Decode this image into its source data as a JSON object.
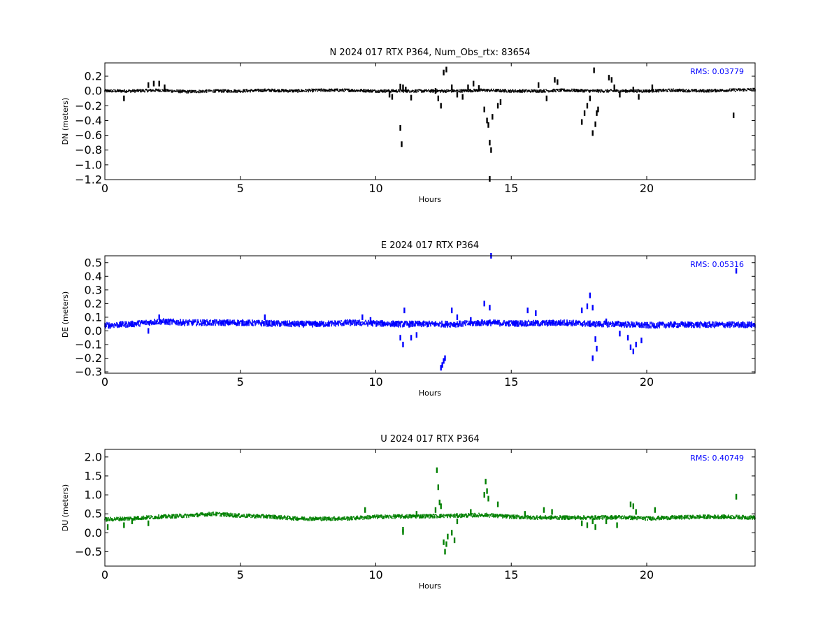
{
  "chart_data": [
    {
      "type": "scatter",
      "title": "N 2024 017 RTX  P364, Num_Obs_rtx: 83654",
      "xlabel": "Hours",
      "ylabel": "DN (meters)",
      "xlim": [
        0,
        24
      ],
      "ylim": [
        -1.2,
        0.38
      ],
      "xticks": [
        0,
        5,
        10,
        15,
        20
      ],
      "yticks": [
        0.2,
        0.0,
        -0.2,
        -0.4,
        -0.6,
        -0.8,
        -1.0,
        -1.2
      ],
      "ytick_labels": [
        "0.2",
        "0.0",
        "−0.2",
        "−0.4",
        "−0.6",
        "−0.8",
        "−1.0",
        "−1.2"
      ],
      "color": "#000000",
      "annotation": "RMS:  0.03779",
      "annotation_color": "#0000ff",
      "baseline": [
        [
          0,
          0.0
        ],
        [
          1,
          0.0
        ],
        [
          2,
          0.01
        ],
        [
          3,
          -0.01
        ],
        [
          4,
          0.0
        ],
        [
          5,
          0.0
        ],
        [
          6,
          0.01
        ],
        [
          7,
          0.0
        ],
        [
          8,
          0.01
        ],
        [
          9,
          0.01
        ],
        [
          10,
          0.0
        ],
        [
          11,
          0.0
        ],
        [
          12,
          0.0
        ],
        [
          13,
          0.0
        ],
        [
          14,
          0.01
        ],
        [
          15,
          0.0
        ],
        [
          16,
          0.0
        ],
        [
          17,
          0.01
        ],
        [
          18,
          0.0
        ],
        [
          19,
          0.0
        ],
        [
          20,
          0.0
        ],
        [
          21,
          0.01
        ],
        [
          22,
          0.0
        ],
        [
          23,
          0.01
        ],
        [
          24,
          0.02
        ]
      ],
      "band": 0.02,
      "outliers": [
        [
          1.6,
          0.08
        ],
        [
          1.8,
          0.1
        ],
        [
          2.0,
          0.1
        ],
        [
          2.2,
          0.05
        ],
        [
          0.7,
          -0.1
        ],
        [
          10.5,
          -0.05
        ],
        [
          10.6,
          -0.08
        ],
        [
          10.9,
          0.06
        ],
        [
          11.0,
          0.05
        ],
        [
          11.1,
          0.02
        ],
        [
          10.9,
          -0.5
        ],
        [
          10.95,
          -0.72
        ],
        [
          11.3,
          -0.09
        ],
        [
          12.2,
          0.0
        ],
        [
          12.3,
          -0.1
        ],
        [
          12.4,
          -0.2
        ],
        [
          12.5,
          0.25
        ],
        [
          12.6,
          0.29
        ],
        [
          12.8,
          0.05
        ],
        [
          13.0,
          -0.05
        ],
        [
          13.2,
          -0.08
        ],
        [
          13.4,
          0.05
        ],
        [
          13.6,
          0.1
        ],
        [
          13.8,
          0.04
        ],
        [
          14.0,
          -0.25
        ],
        [
          14.1,
          -0.4
        ],
        [
          14.15,
          -0.46
        ],
        [
          14.2,
          -0.7
        ],
        [
          14.25,
          -0.8
        ],
        [
          14.3,
          -0.35
        ],
        [
          14.5,
          -0.2
        ],
        [
          14.6,
          -0.15
        ],
        [
          14.2,
          -1.19
        ],
        [
          16.0,
          0.08
        ],
        [
          16.3,
          -0.1
        ],
        [
          16.6,
          0.15
        ],
        [
          16.7,
          0.12
        ],
        [
          17.6,
          -0.42
        ],
        [
          17.7,
          -0.3
        ],
        [
          17.8,
          -0.2
        ],
        [
          17.9,
          -0.1
        ],
        [
          18.0,
          -0.57
        ],
        [
          18.1,
          -0.45
        ],
        [
          18.15,
          -0.3
        ],
        [
          18.2,
          -0.25
        ],
        [
          18.05,
          0.28
        ],
        [
          18.6,
          0.18
        ],
        [
          18.7,
          0.15
        ],
        [
          18.8,
          0.05
        ],
        [
          19.0,
          -0.05
        ],
        [
          19.5,
          0.02
        ],
        [
          19.7,
          -0.08
        ],
        [
          20.2,
          0.05
        ],
        [
          23.2,
          -0.33
        ]
      ]
    },
    {
      "type": "scatter",
      "title": "E 2024 017 RTX  P364",
      "xlabel": "Hours",
      "ylabel": "DE (meters)",
      "xlim": [
        0,
        24
      ],
      "ylim": [
        -0.31,
        0.55
      ],
      "xticks": [
        0,
        5,
        10,
        15,
        20
      ],
      "yticks": [
        0.5,
        0.4,
        0.3,
        0.2,
        0.1,
        0.0,
        -0.1,
        -0.2,
        -0.3
      ],
      "ytick_labels": [
        "0.5",
        "0.4",
        "0.3",
        "0.2",
        "0.1",
        "0.0",
        "−0.1",
        "−0.2",
        "−0.3"
      ],
      "color": "#0000ff",
      "annotation": "RMS:  0.05316",
      "annotation_color": "#0000ff",
      "baseline": [
        [
          0,
          0.04
        ],
        [
          1,
          0.05
        ],
        [
          2,
          0.07
        ],
        [
          3,
          0.06
        ],
        [
          4,
          0.06
        ],
        [
          5,
          0.06
        ],
        [
          6,
          0.055
        ],
        [
          7,
          0.05
        ],
        [
          8,
          0.05
        ],
        [
          9,
          0.06
        ],
        [
          10,
          0.055
        ],
        [
          11,
          0.05
        ],
        [
          12,
          0.05
        ],
        [
          13,
          0.05
        ],
        [
          14,
          0.06
        ],
        [
          15,
          0.055
        ],
        [
          16,
          0.055
        ],
        [
          17,
          0.06
        ],
        [
          18,
          0.05
        ],
        [
          19,
          0.05
        ],
        [
          20,
          0.04
        ],
        [
          21,
          0.045
        ],
        [
          22,
          0.045
        ],
        [
          23,
          0.045
        ],
        [
          24,
          0.045
        ]
      ],
      "band": 0.02,
      "outliers": [
        [
          1.6,
          0.0
        ],
        [
          2.0,
          0.1
        ],
        [
          5.9,
          0.1
        ],
        [
          9.5,
          0.1
        ],
        [
          9.8,
          0.08
        ],
        [
          10.9,
          -0.05
        ],
        [
          11.0,
          -0.1
        ],
        [
          11.05,
          0.15
        ],
        [
          11.3,
          -0.05
        ],
        [
          11.5,
          -0.03
        ],
        [
          12.4,
          -0.27
        ],
        [
          12.45,
          -0.25
        ],
        [
          12.5,
          -0.22
        ],
        [
          12.55,
          -0.2
        ],
        [
          12.8,
          0.15
        ],
        [
          13.0,
          0.1
        ],
        [
          13.5,
          0.08
        ],
        [
          14.0,
          0.2
        ],
        [
          14.2,
          0.17
        ],
        [
          14.25,
          0.55
        ],
        [
          15.6,
          0.15
        ],
        [
          15.9,
          0.13
        ],
        [
          17.6,
          0.15
        ],
        [
          17.8,
          0.18
        ],
        [
          17.9,
          0.26
        ],
        [
          18.0,
          0.17
        ],
        [
          18.0,
          -0.2
        ],
        [
          18.1,
          -0.06
        ],
        [
          18.15,
          -0.13
        ],
        [
          18.5,
          0.07
        ],
        [
          19.0,
          -0.02
        ],
        [
          19.3,
          -0.05
        ],
        [
          19.4,
          -0.12
        ],
        [
          19.5,
          -0.15
        ],
        [
          19.6,
          -0.1
        ],
        [
          19.8,
          -0.07
        ],
        [
          23.3,
          0.44
        ]
      ]
    },
    {
      "type": "scatter",
      "title": "U 2024 017 RTX  P364",
      "xlabel": "Hours",
      "ylabel": "DU (meters)",
      "xlim": [
        0,
        24
      ],
      "ylim": [
        -0.88,
        2.2
      ],
      "xticks": [
        0,
        5,
        10,
        15,
        20
      ],
      "yticks": [
        2.0,
        1.5,
        1.0,
        0.5,
        0.0,
        -0.5
      ],
      "ytick_labels": [
        "2.0",
        "1.5",
        "1.0",
        "0.5",
        "0.0",
        "−0.5"
      ],
      "color": "#008000",
      "annotation": "RMS:  0.40749",
      "annotation_color": "#0000ff",
      "baseline": [
        [
          0,
          0.35
        ],
        [
          1,
          0.38
        ],
        [
          2,
          0.42
        ],
        [
          3,
          0.45
        ],
        [
          4,
          0.5
        ],
        [
          5,
          0.45
        ],
        [
          6,
          0.43
        ],
        [
          7,
          0.38
        ],
        [
          8,
          0.37
        ],
        [
          9,
          0.38
        ],
        [
          10,
          0.42
        ],
        [
          11,
          0.43
        ],
        [
          12,
          0.44
        ],
        [
          13,
          0.45
        ],
        [
          14,
          0.47
        ],
        [
          15,
          0.42
        ],
        [
          16,
          0.4
        ],
        [
          17,
          0.4
        ],
        [
          18,
          0.4
        ],
        [
          19,
          0.41
        ],
        [
          20,
          0.38
        ],
        [
          21,
          0.4
        ],
        [
          22,
          0.42
        ],
        [
          23,
          0.42
        ],
        [
          24,
          0.4
        ]
      ],
      "band": 0.05,
      "outliers": [
        [
          0.1,
          0.15
        ],
        [
          0.7,
          0.2
        ],
        [
          1.0,
          0.3
        ],
        [
          1.6,
          0.25
        ],
        [
          9.6,
          0.6
        ],
        [
          11.0,
          0.02
        ],
        [
          11.0,
          0.08
        ],
        [
          11.5,
          0.5
        ],
        [
          12.2,
          0.6
        ],
        [
          12.25,
          1.65
        ],
        [
          12.3,
          1.2
        ],
        [
          12.35,
          0.8
        ],
        [
          12.4,
          0.7
        ],
        [
          12.5,
          -0.25
        ],
        [
          12.55,
          -0.5
        ],
        [
          12.6,
          -0.3
        ],
        [
          12.65,
          -0.1
        ],
        [
          12.8,
          0.0
        ],
        [
          12.9,
          -0.2
        ],
        [
          13.0,
          0.3
        ],
        [
          13.5,
          0.55
        ],
        [
          14.0,
          1.0
        ],
        [
          14.05,
          1.35
        ],
        [
          14.1,
          1.1
        ],
        [
          14.15,
          0.9
        ],
        [
          14.5,
          0.75
        ],
        [
          15.5,
          0.5
        ],
        [
          16.2,
          0.6
        ],
        [
          16.5,
          0.55
        ],
        [
          17.6,
          0.25
        ],
        [
          17.8,
          0.2
        ],
        [
          18.0,
          0.3
        ],
        [
          18.1,
          0.15
        ],
        [
          18.5,
          0.3
        ],
        [
          18.9,
          0.2
        ],
        [
          19.4,
          0.75
        ],
        [
          19.5,
          0.7
        ],
        [
          19.6,
          0.55
        ],
        [
          20.3,
          0.6
        ],
        [
          23.3,
          0.95
        ]
      ]
    }
  ]
}
